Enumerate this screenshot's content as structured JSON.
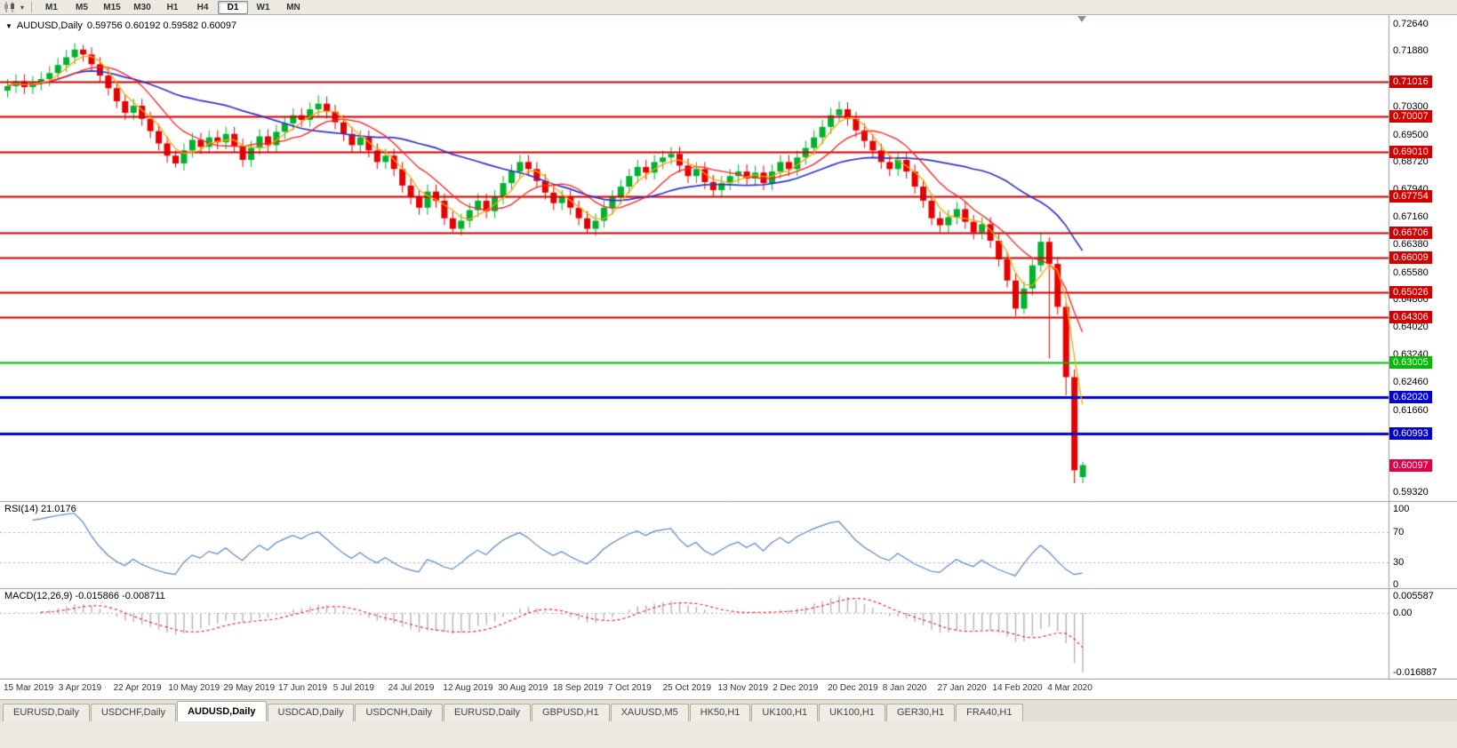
{
  "toolbar": {
    "timeframes": [
      "M1",
      "M5",
      "M15",
      "M30",
      "H1",
      "H4",
      "D1",
      "W1",
      "MN"
    ],
    "active_timeframe": "D1"
  },
  "icons": {
    "collapse_arrow": "▼"
  },
  "chart": {
    "symbol": "AUDUSD,Daily",
    "ohlc_text": "0.59756 0.60192 0.59582 0.60097",
    "open": "0.59756",
    "high": "0.60192",
    "low": "0.59582",
    "close": "0.60097",
    "price_axis": {
      "max": 0.729,
      "min": 0.591,
      "labels": [
        "0.72640",
        "0.71880",
        "0.70300",
        "0.69500",
        "0.68720",
        "0.67940",
        "0.67160",
        "0.66380",
        "0.65580",
        "0.64800",
        "0.64020",
        "0.63240",
        "0.62460",
        "0.61660",
        "0.59320"
      ]
    },
    "levels": [
      {
        "price": "0.71016",
        "color": "#D00000",
        "width": 2
      },
      {
        "price": "0.70007",
        "color": "#D00000",
        "width": 2
      },
      {
        "price": "0.69010",
        "color": "#D00000",
        "width": 2
      },
      {
        "price": "0.67754",
        "color": "#D00000",
        "width": 2
      },
      {
        "price": "0.66706",
        "color": "#D00000",
        "width": 2
      },
      {
        "price": "0.66009",
        "color": "#D00000",
        "width": 2
      },
      {
        "price": "0.65026",
        "color": "#D00000",
        "width": 2
      },
      {
        "price": "0.64306",
        "color": "#D00000",
        "width": 2
      },
      {
        "price": "0.63005",
        "color": "#00BB00",
        "width": 2
      },
      {
        "price": "0.62020",
        "color": "#0000CC",
        "width": 3
      },
      {
        "price": "0.60993",
        "color": "#0000CC",
        "width": 3
      }
    ],
    "current_price": {
      "price": "0.60097",
      "color": "#E00045"
    },
    "colors": {
      "bull": "#00B22D",
      "bear": "#E60000",
      "ma_fast": "#FFA500",
      "ma_mid": "#FF2020",
      "ma_slow": "#3333CC"
    },
    "dates": [
      "15 Mar 2019",
      "3 Apr 2019",
      "22 Apr 2019",
      "10 May 2019",
      "29 May 2019",
      "17 Jun 2019",
      "5 Jul 2019",
      "24 Jul 2019",
      "12 Aug 2019",
      "30 Aug 2019",
      "18 Sep 2019",
      "7 Oct 2019",
      "25 Oct 2019",
      "13 Nov 2019",
      "2 Dec 2019",
      "20 Dec 2019",
      "8 Jan 2020",
      "27 Jan 2020",
      "14 Feb 2020",
      "4 Mar 2020"
    ],
    "candles": [
      [
        0.7075,
        0.7108,
        0.7055,
        0.7088
      ],
      [
        0.7088,
        0.7122,
        0.7068,
        0.7102
      ],
      [
        0.7102,
        0.7122,
        0.7065,
        0.7085
      ],
      [
        0.7085,
        0.7116,
        0.7065,
        0.7096
      ],
      [
        0.7096,
        0.7128,
        0.7076,
        0.7108
      ],
      [
        0.7108,
        0.7145,
        0.7088,
        0.7125
      ],
      [
        0.7125,
        0.7168,
        0.7105,
        0.7148
      ],
      [
        0.7148,
        0.719,
        0.7128,
        0.717
      ],
      [
        0.717,
        0.721,
        0.715,
        0.7192
      ],
      [
        0.7192,
        0.7205,
        0.7158,
        0.7178
      ],
      [
        0.7178,
        0.7198,
        0.713,
        0.715
      ],
      [
        0.715,
        0.717,
        0.7098,
        0.7118
      ],
      [
        0.7118,
        0.7138,
        0.7062,
        0.7082
      ],
      [
        0.7082,
        0.7102,
        0.7025,
        0.7045
      ],
      [
        0.7045,
        0.7065,
        0.6992,
        0.7012
      ],
      [
        0.7012,
        0.7052,
        0.6992,
        0.7032
      ],
      [
        0.7032,
        0.7052,
        0.6975,
        0.6995
      ],
      [
        0.6995,
        0.7015,
        0.694,
        0.696
      ],
      [
        0.696,
        0.698,
        0.6905,
        0.6925
      ],
      [
        0.6925,
        0.6945,
        0.687,
        0.689
      ],
      [
        0.689,
        0.6905,
        0.6856,
        0.6868
      ],
      [
        0.6868,
        0.6925,
        0.6848,
        0.6905
      ],
      [
        0.6905,
        0.6955,
        0.6885,
        0.6935
      ],
      [
        0.6935,
        0.6955,
        0.6895,
        0.6915
      ],
      [
        0.6915,
        0.6962,
        0.6895,
        0.6942
      ],
      [
        0.6942,
        0.6962,
        0.6908,
        0.6928
      ],
      [
        0.6928,
        0.6972,
        0.6908,
        0.6952
      ],
      [
        0.6952,
        0.6972,
        0.6898,
        0.6918
      ],
      [
        0.6918,
        0.6938,
        0.6858,
        0.6878
      ],
      [
        0.6878,
        0.6932,
        0.6858,
        0.6912
      ],
      [
        0.6912,
        0.6965,
        0.6892,
        0.6945
      ],
      [
        0.6945,
        0.6965,
        0.69,
        0.692
      ],
      [
        0.692,
        0.6978,
        0.69,
        0.6958
      ],
      [
        0.6958,
        0.7002,
        0.6938,
        0.6982
      ],
      [
        0.6982,
        0.7025,
        0.6962,
        0.7005
      ],
      [
        0.7005,
        0.7025,
        0.6972,
        0.6992
      ],
      [
        0.6992,
        0.7042,
        0.6972,
        0.7022
      ],
      [
        0.7022,
        0.7062,
        0.7002,
        0.7038
      ],
      [
        0.7038,
        0.7058,
        0.6995,
        0.7015
      ],
      [
        0.7015,
        0.7035,
        0.6965,
        0.6985
      ],
      [
        0.6985,
        0.7005,
        0.6932,
        0.6952
      ],
      [
        0.6952,
        0.6972,
        0.69,
        0.692
      ],
      [
        0.692,
        0.6962,
        0.69,
        0.6942
      ],
      [
        0.6942,
        0.6962,
        0.6885,
        0.6905
      ],
      [
        0.6905,
        0.6925,
        0.6852,
        0.6872
      ],
      [
        0.6872,
        0.691,
        0.6852,
        0.689
      ],
      [
        0.689,
        0.691,
        0.6832,
        0.6852
      ],
      [
        0.6852,
        0.6872,
        0.6785,
        0.6805
      ],
      [
        0.6805,
        0.6825,
        0.6752,
        0.6772
      ],
      [
        0.6772,
        0.6792,
        0.6722,
        0.6742
      ],
      [
        0.6742,
        0.6808,
        0.6722,
        0.6788
      ],
      [
        0.6788,
        0.6808,
        0.6742,
        0.6762
      ],
      [
        0.6762,
        0.6782,
        0.6692,
        0.6712
      ],
      [
        0.6712,
        0.6732,
        0.6672,
        0.6682
      ],
      [
        0.6682,
        0.6725,
        0.6662,
        0.6705
      ],
      [
        0.6705,
        0.6755,
        0.6685,
        0.6735
      ],
      [
        0.6735,
        0.6782,
        0.6715,
        0.6762
      ],
      [
        0.6762,
        0.6782,
        0.6712,
        0.6732
      ],
      [
        0.6732,
        0.6792,
        0.6712,
        0.6772
      ],
      [
        0.6772,
        0.6832,
        0.6752,
        0.6812
      ],
      [
        0.6812,
        0.6865,
        0.6792,
        0.6845
      ],
      [
        0.6845,
        0.6892,
        0.6825,
        0.6872
      ],
      [
        0.6872,
        0.6892,
        0.6832,
        0.6852
      ],
      [
        0.6852,
        0.6872,
        0.6798,
        0.6818
      ],
      [
        0.6818,
        0.6838,
        0.6765,
        0.6785
      ],
      [
        0.6785,
        0.6805,
        0.6735,
        0.6755
      ],
      [
        0.6755,
        0.6792,
        0.6735,
        0.6772
      ],
      [
        0.6772,
        0.6792,
        0.6722,
        0.6742
      ],
      [
        0.6742,
        0.6762,
        0.6692,
        0.6712
      ],
      [
        0.6712,
        0.6732,
        0.6671,
        0.6682
      ],
      [
        0.6682,
        0.6725,
        0.6662,
        0.6705
      ],
      [
        0.6705,
        0.6762,
        0.6685,
        0.6742
      ],
      [
        0.6742,
        0.6792,
        0.6722,
        0.6772
      ],
      [
        0.6772,
        0.6822,
        0.6752,
        0.6802
      ],
      [
        0.6802,
        0.6852,
        0.6782,
        0.6832
      ],
      [
        0.6832,
        0.6878,
        0.6812,
        0.6858
      ],
      [
        0.6858,
        0.6878,
        0.6822,
        0.6842
      ],
      [
        0.6842,
        0.6892,
        0.6822,
        0.6872
      ],
      [
        0.6872,
        0.6905,
        0.6852,
        0.6885
      ],
      [
        0.6885,
        0.6915,
        0.6865,
        0.6895
      ],
      [
        0.6895,
        0.6915,
        0.6842,
        0.6862
      ],
      [
        0.6862,
        0.6882,
        0.6812,
        0.6832
      ],
      [
        0.6832,
        0.6872,
        0.6812,
        0.6852
      ],
      [
        0.6852,
        0.6872,
        0.6795,
        0.6815
      ],
      [
        0.6815,
        0.6835,
        0.6772,
        0.6792
      ],
      [
        0.6792,
        0.6832,
        0.6772,
        0.6812
      ],
      [
        0.6812,
        0.6852,
        0.6792,
        0.6832
      ],
      [
        0.6832,
        0.6865,
        0.6812,
        0.6845
      ],
      [
        0.6845,
        0.6865,
        0.6805,
        0.6825
      ],
      [
        0.6825,
        0.6862,
        0.6805,
        0.6842
      ],
      [
        0.6842,
        0.6862,
        0.6792,
        0.6812
      ],
      [
        0.6812,
        0.6865,
        0.6792,
        0.6845
      ],
      [
        0.6845,
        0.6892,
        0.6825,
        0.6872
      ],
      [
        0.6872,
        0.6892,
        0.6832,
        0.6852
      ],
      [
        0.6852,
        0.6905,
        0.6832,
        0.6885
      ],
      [
        0.6885,
        0.6932,
        0.6865,
        0.6912
      ],
      [
        0.6912,
        0.6962,
        0.6892,
        0.6942
      ],
      [
        0.6942,
        0.6992,
        0.6922,
        0.6972
      ],
      [
        0.6972,
        0.7025,
        0.6952,
        0.7005
      ],
      [
        0.7005,
        0.7045,
        0.6985,
        0.7022
      ],
      [
        0.7022,
        0.7042,
        0.6975,
        0.6995
      ],
      [
        0.6995,
        0.7015,
        0.6942,
        0.6962
      ],
      [
        0.6962,
        0.6982,
        0.6912,
        0.6932
      ],
      [
        0.6932,
        0.6952,
        0.6885,
        0.6905
      ],
      [
        0.6905,
        0.6925,
        0.6852,
        0.6872
      ],
      [
        0.6872,
        0.6892,
        0.6832,
        0.6852
      ],
      [
        0.6852,
        0.6898,
        0.6832,
        0.6878
      ],
      [
        0.6878,
        0.6898,
        0.6825,
        0.6845
      ],
      [
        0.6845,
        0.6865,
        0.6782,
        0.6802
      ],
      [
        0.6802,
        0.6822,
        0.6742,
        0.6762
      ],
      [
        0.6762,
        0.6782,
        0.6692,
        0.6712
      ],
      [
        0.6712,
        0.6732,
        0.6672,
        0.6692
      ],
      [
        0.6692,
        0.6735,
        0.6672,
        0.6715
      ],
      [
        0.6715,
        0.6758,
        0.6695,
        0.6738
      ],
      [
        0.6738,
        0.6758,
        0.6682,
        0.6702
      ],
      [
        0.6702,
        0.6722,
        0.6652,
        0.6672
      ],
      [
        0.6672,
        0.6715,
        0.6652,
        0.6695
      ],
      [
        0.6695,
        0.6715,
        0.6628,
        0.6648
      ],
      [
        0.6648,
        0.6668,
        0.6575,
        0.6595
      ],
      [
        0.6595,
        0.6615,
        0.6515,
        0.6535
      ],
      [
        0.6535,
        0.6555,
        0.6434,
        0.6455
      ],
      [
        0.6455,
        0.6532,
        0.644,
        0.6512
      ],
      [
        0.6512,
        0.6598,
        0.6492,
        0.6578
      ],
      [
        0.6578,
        0.6668,
        0.6558,
        0.6645
      ],
      [
        0.6645,
        0.6658,
        0.6313,
        0.6582
      ],
      [
        0.6582,
        0.6602,
        0.6438,
        0.646
      ],
      [
        0.646,
        0.6472,
        0.6208,
        0.626
      ],
      [
        0.626,
        0.6282,
        0.5958,
        0.5995
      ],
      [
        0.59756,
        0.60192,
        0.59582,
        0.60097
      ]
    ]
  },
  "rsi": {
    "title": "RSI(14) 21.0176",
    "scale_labels": [
      "100",
      "70",
      "30",
      "0"
    ],
    "level_lines": [
      70,
      30
    ],
    "line_color": "#5B87C5"
  },
  "macd": {
    "title": "MACD(12,26,9) -0.015866 -0.008711",
    "scale_labels": [
      "0.005587",
      "0.00",
      "-0.016887"
    ],
    "hist_color": "#B4B4B4",
    "signal_color": "#FF2020"
  },
  "tabs": {
    "active_index": 2,
    "items": [
      "EURUSD,Daily",
      "USDCHF,Daily",
      "AUDUSD,Daily",
      "USDCAD,Daily",
      "USDCNH,Daily",
      "EURUSD,Daily",
      "GBPUSD,H1",
      "XAUUSD,M5",
      "HK50,H1",
      "UK100,H1",
      "UK100,H1",
      "GER30,H1",
      "FRA40,H1"
    ]
  }
}
